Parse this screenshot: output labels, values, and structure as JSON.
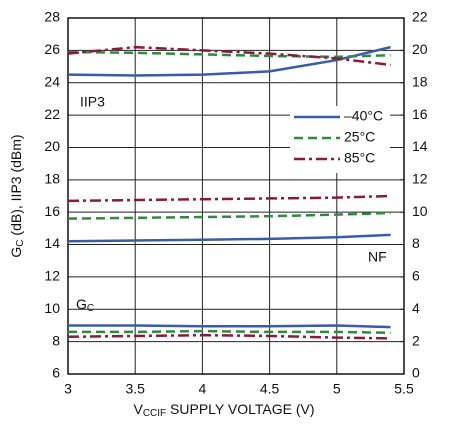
{
  "chart_data": {
    "type": "line",
    "xlabel": {
      "main": "V",
      "sub": "CCIF",
      "rest": " SUPPLY VOLTAGE (V)"
    },
    "ylabel": {
      "main": "G",
      "sub": "C",
      "rest": " (dB), IIP3 (dBm)"
    },
    "annotations": [
      {
        "text": "IIP3"
      },
      {
        "text": "NF"
      },
      {
        "text": "G",
        "sub": "C"
      }
    ],
    "x": [
      3,
      3.5,
      4,
      4.5,
      5,
      5.4
    ],
    "xlim": [
      3,
      5.5
    ],
    "xticks": [
      3,
      3.5,
      4,
      4.5,
      5,
      5.5
    ],
    "ylim": [
      6,
      28
    ],
    "yticks": [
      6,
      8,
      10,
      12,
      14,
      16,
      18,
      20,
      22,
      24,
      26,
      28
    ],
    "y2lim": [
      0,
      22
    ],
    "y2ticks": [
      0,
      2,
      4,
      6,
      8,
      10,
      12,
      14,
      16,
      18,
      20,
      22
    ],
    "grid": true,
    "legend": "upper right",
    "series": [
      {
        "name": "–40°C",
        "color": "#3a5ba8",
        "dash": "solid",
        "values": [
          24.5,
          24.45,
          24.5,
          24.7,
          25.4,
          26.2
        ]
      },
      {
        "name": "25°C",
        "color": "#2e8b3e",
        "dash": "dashed",
        "values": [
          25.9,
          25.85,
          25.75,
          25.65,
          25.6,
          25.7
        ]
      },
      {
        "name": "85°C",
        "color": "#8b1a3a",
        "dash": "dashdot",
        "values": [
          25.8,
          26.2,
          26.0,
          25.8,
          25.5,
          25.1
        ]
      },
      {
        "color": "#3a5ba8",
        "dash": "solid",
        "axis": "y2",
        "values": [
          8.2,
          8.25,
          8.3,
          8.35,
          8.45,
          8.6
        ]
      },
      {
        "color": "#2e8b3e",
        "dash": "dashed",
        "axis": "y2",
        "values": [
          9.6,
          9.65,
          9.7,
          9.75,
          9.85,
          9.95
        ]
      },
      {
        "color": "#8b1a3a",
        "dash": "dashdot",
        "axis": "y2",
        "values": [
          10.7,
          10.75,
          10.8,
          10.85,
          10.9,
          11.0
        ]
      },
      {
        "color": "#3a5ba8",
        "dash": "solid",
        "values": [
          9.0,
          9.0,
          8.95,
          8.95,
          9.0,
          8.9
        ]
      },
      {
        "color": "#2e8b3e",
        "dash": "dashed",
        "values": [
          8.6,
          8.6,
          8.65,
          8.6,
          8.6,
          8.55
        ]
      },
      {
        "color": "#8b1a3a",
        "dash": "dashdot",
        "values": [
          8.3,
          8.35,
          8.4,
          8.35,
          8.25,
          8.2
        ]
      }
    ]
  }
}
